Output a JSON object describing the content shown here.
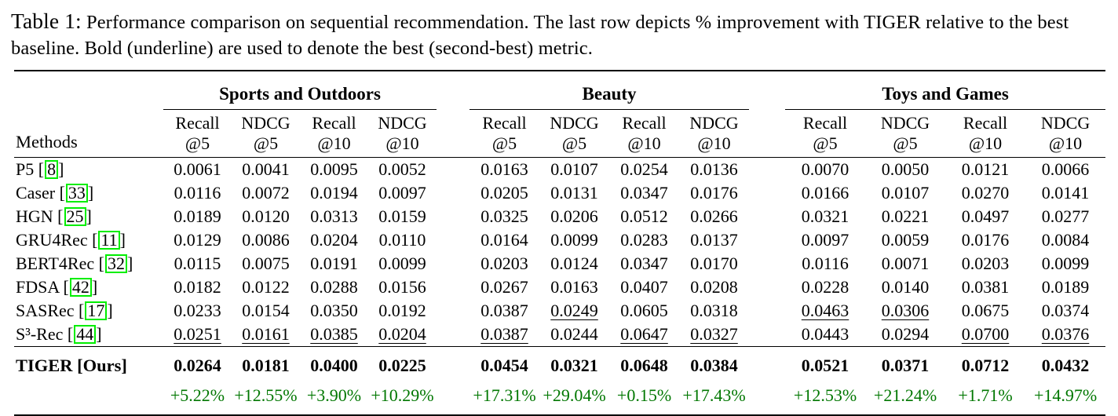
{
  "caption": {
    "label": "Table 1:",
    "text": "Performance comparison on sequential recommendation. The last row depicts % improvement with TIGER relative to the best baseline. Bold (underline) are used to denote the best (second-best) metric."
  },
  "table": {
    "methods_header": "Methods",
    "groups": [
      {
        "label": "Sports and Outdoors"
      },
      {
        "label": "Beauty"
      },
      {
        "label": "Toys and Games"
      }
    ],
    "metric_columns": [
      {
        "line1": "Recall",
        "line2": "@5"
      },
      {
        "line1": "NDCG",
        "line2": "@5"
      },
      {
        "line1": "Recall",
        "line2": "@10"
      },
      {
        "line1": "NDCG",
        "line2": "@10"
      }
    ],
    "rows": [
      {
        "method": "P5",
        "cite": "8",
        "values": [
          "0.0061",
          "0.0041",
          "0.0095",
          "0.0052",
          "0.0163",
          "0.0107",
          "0.0254",
          "0.0136",
          "0.0070",
          "0.0050",
          "0.0121",
          "0.0066"
        ],
        "underline": []
      },
      {
        "method": "Caser",
        "cite": "33",
        "values": [
          "0.0116",
          "0.0072",
          "0.0194",
          "0.0097",
          "0.0205",
          "0.0131",
          "0.0347",
          "0.0176",
          "0.0166",
          "0.0107",
          "0.0270",
          "0.0141"
        ],
        "underline": []
      },
      {
        "method": "HGN",
        "cite": "25",
        "values": [
          "0.0189",
          "0.0120",
          "0.0313",
          "0.0159",
          "0.0325",
          "0.0206",
          "0.0512",
          "0.0266",
          "0.0321",
          "0.0221",
          "0.0497",
          "0.0277"
        ],
        "underline": []
      },
      {
        "method": "GRU4Rec",
        "cite": "11",
        "values": [
          "0.0129",
          "0.0086",
          "0.0204",
          "0.0110",
          "0.0164",
          "0.0099",
          "0.0283",
          "0.0137",
          "0.0097",
          "0.0059",
          "0.0176",
          "0.0084"
        ],
        "underline": []
      },
      {
        "method": "BERT4Rec",
        "cite": "32",
        "values": [
          "0.0115",
          "0.0075",
          "0.0191",
          "0.0099",
          "0.0203",
          "0.0124",
          "0.0347",
          "0.0170",
          "0.0116",
          "0.0071",
          "0.0203",
          "0.0099"
        ],
        "underline": []
      },
      {
        "method": "FDSA",
        "cite": "42",
        "values": [
          "0.0182",
          "0.0122",
          "0.0288",
          "0.0156",
          "0.0267",
          "0.0163",
          "0.0407",
          "0.0208",
          "0.0228",
          "0.0140",
          "0.0381",
          "0.0189"
        ],
        "underline": []
      },
      {
        "method": "SASRec",
        "cite": "17",
        "values": [
          "0.0233",
          "0.0154",
          "0.0350",
          "0.0192",
          "0.0387",
          "0.0249",
          "0.0605",
          "0.0318",
          "0.0463",
          "0.0306",
          "0.0675",
          "0.0374"
        ],
        "underline": [
          5,
          8,
          9
        ]
      },
      {
        "method": "S³-Rec",
        "cite": "44",
        "values": [
          "0.0251",
          "0.0161",
          "0.0385",
          "0.0204",
          "0.0387",
          "0.0244",
          "0.0647",
          "0.0327",
          "0.0443",
          "0.0294",
          "0.0700",
          "0.0376"
        ],
        "underline": [
          0,
          1,
          2,
          3,
          4,
          6,
          7,
          10,
          11
        ]
      }
    ],
    "highlight_row": {
      "method": "TIGER [Ours]",
      "values": [
        "0.0264",
        "0.0181",
        "0.0400",
        "0.0225",
        "0.0454",
        "0.0321",
        "0.0648",
        "0.0384",
        "0.0521",
        "0.0371",
        "0.0712",
        "0.0432"
      ]
    },
    "improvement_row": {
      "values": [
        "+5.22%",
        "+12.55%",
        "+3.90%",
        "+10.29%",
        "+17.31%",
        "+29.04%",
        "+0.15%",
        "+17.43%",
        "+12.53%",
        "+21.24%",
        "+1.71%",
        "+14.97%"
      ]
    }
  },
  "colors": {
    "improvement_green": "#007700",
    "citation_box_green": "#00ee00",
    "text_black": "#000000"
  }
}
